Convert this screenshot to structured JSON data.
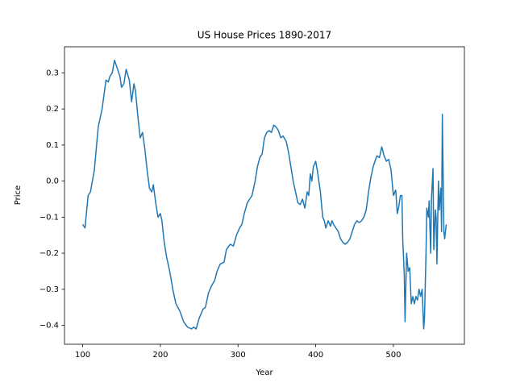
{
  "chart_data": {
    "type": "line",
    "title": "US House Prices 1890-2017",
    "x_label": "Year",
    "y_label": "Price",
    "xlim": [
      76.6,
      591.4
    ],
    "ylim": [
      -0.4525,
      0.3725
    ],
    "xticks": [
      100,
      200,
      300,
      400,
      500
    ],
    "yticks": [
      {
        "value": -0.4,
        "label": "−0.4"
      },
      {
        "value": -0.3,
        "label": "−0.3"
      },
      {
        "value": -0.2,
        "label": "−0.2"
      },
      {
        "value": -0.1,
        "label": "−0.1"
      },
      {
        "value": 0,
        "label": "0.0"
      },
      0.1,
      0.2,
      0.3
    ],
    "grid": false,
    "series": [
      {
        "color": "#1f77b4",
        "x": [
          100,
          103,
          107,
          110,
          115,
          120,
          125,
          130,
          133,
          135,
          138,
          141,
          145,
          148,
          150,
          153,
          156,
          160,
          163,
          166,
          168,
          171,
          174,
          177,
          180,
          183,
          186,
          189,
          191,
          194,
          197,
          200,
          202,
          205,
          208,
          212,
          216,
          220,
          225,
          230,
          235,
          240,
          243,
          246,
          250,
          255,
          258,
          262,
          266,
          270,
          273,
          277,
          282,
          285,
          290,
          294,
          298,
          302,
          305,
          308,
          312,
          315,
          318,
          322,
          325,
          328,
          331,
          334,
          337,
          340,
          343,
          346,
          349,
          352,
          355,
          358,
          362,
          365,
          368,
          371,
          374,
          377,
          380,
          383,
          386,
          389,
          391,
          393,
          395,
          397,
          400,
          402,
          404,
          406,
          409,
          411,
          413,
          416,
          419,
          421,
          423,
          426,
          429,
          432,
          435,
          438,
          441,
          444,
          447,
          450,
          453,
          456,
          459,
          462,
          465,
          468,
          471,
          474,
          477,
          479,
          482,
          485,
          488,
          491,
          494,
          497,
          500,
          503,
          505,
          507,
          509,
          511,
          512,
          514,
          515,
          517,
          519,
          521,
          523,
          525,
          527,
          529,
          531,
          533,
          535,
          537,
          539,
          540,
          542,
          543,
          545,
          546,
          548,
          549,
          551,
          552,
          554,
          555,
          556,
          558,
          559,
          561,
          562,
          563,
          565,
          566,
          568
        ],
        "values": [
          -0.12,
          -0.13,
          -0.04,
          -0.03,
          0.03,
          0.15,
          0.2,
          0.28,
          0.275,
          0.29,
          0.3,
          0.335,
          0.31,
          0.29,
          0.26,
          0.27,
          0.31,
          0.28,
          0.22,
          0.27,
          0.25,
          0.18,
          0.12,
          0.135,
          0.09,
          0.03,
          -0.02,
          -0.03,
          -0.01,
          -0.06,
          -0.1,
          -0.09,
          -0.11,
          -0.17,
          -0.21,
          -0.25,
          -0.3,
          -0.34,
          -0.36,
          -0.39,
          -0.405,
          -0.41,
          -0.405,
          -0.41,
          -0.38,
          -0.355,
          -0.35,
          -0.31,
          -0.29,
          -0.275,
          -0.25,
          -0.23,
          -0.225,
          -0.19,
          -0.175,
          -0.18,
          -0.15,
          -0.13,
          -0.12,
          -0.09,
          -0.06,
          -0.05,
          -0.04,
          0.0,
          0.04,
          0.065,
          0.075,
          0.12,
          0.135,
          0.14,
          0.135,
          0.155,
          0.15,
          0.14,
          0.12,
          0.125,
          0.11,
          0.08,
          0.04,
          0.0,
          -0.03,
          -0.06,
          -0.065,
          -0.05,
          -0.075,
          -0.03,
          -0.04,
          0.02,
          0.0,
          0.04,
          0.055,
          0.03,
          0.0,
          -0.03,
          -0.1,
          -0.11,
          -0.13,
          -0.11,
          -0.125,
          -0.11,
          -0.12,
          -0.13,
          -0.14,
          -0.16,
          -0.17,
          -0.175,
          -0.17,
          -0.16,
          -0.14,
          -0.12,
          -0.11,
          -0.115,
          -0.11,
          -0.1,
          -0.08,
          -0.03,
          0.01,
          0.04,
          0.06,
          0.07,
          0.065,
          0.095,
          0.07,
          0.055,
          0.06,
          0.03,
          -0.04,
          -0.025,
          -0.09,
          -0.07,
          -0.04,
          -0.04,
          -0.16,
          -0.26,
          -0.39,
          -0.2,
          -0.25,
          -0.24,
          -0.34,
          -0.32,
          -0.34,
          -0.32,
          -0.33,
          -0.3,
          -0.32,
          -0.3,
          -0.41,
          -0.38,
          -0.2,
          -0.075,
          -0.1,
          -0.055,
          -0.2,
          -0.05,
          0.035,
          -0.19,
          -0.08,
          -0.1,
          -0.23,
          0.0,
          -0.08,
          -0.02,
          -0.14,
          0.185,
          -0.14,
          -0.16,
          -0.12
        ]
      }
    ]
  }
}
